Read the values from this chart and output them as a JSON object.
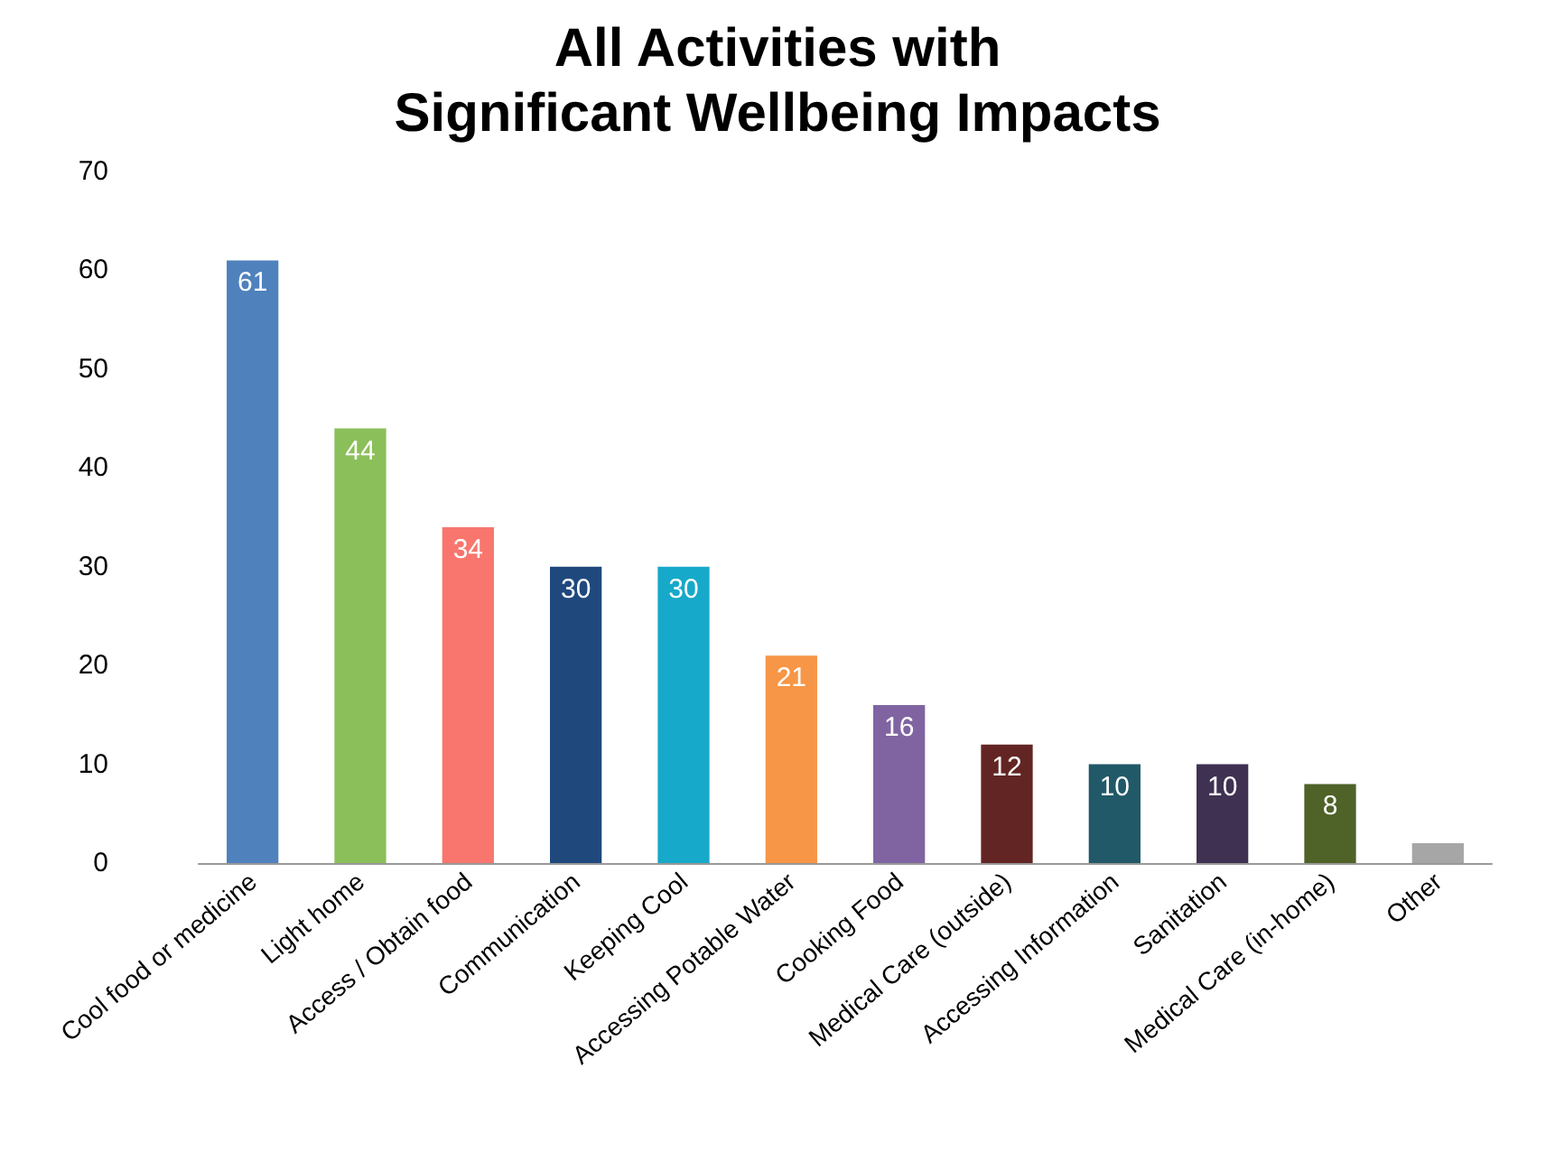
{
  "chart_data": {
    "type": "bar",
    "title": "All Activities with\nSignificant Wellbeing Impacts",
    "categories": [
      "Cool food or medicine",
      "Light home",
      "Access / Obtain food",
      "Communication",
      "Keeping Cool",
      "Accessing Potable Water",
      "Cooking Food",
      "Medical Care (outside)",
      "Accessing Information",
      "Sanitation",
      "Medical Care (in-home)",
      "Other"
    ],
    "values": [
      61,
      44,
      34,
      30,
      30,
      21,
      16,
      12,
      10,
      10,
      8,
      2
    ],
    "colors": [
      "#4f81bd",
      "#8bbf5a",
      "#f8766d",
      "#1f497d",
      "#17a9c9",
      "#f79646",
      "#8064a2",
      "#632523",
      "#215968",
      "#3f3151",
      "#4f6228",
      "#a6a6a6"
    ],
    "value_labels": [
      "61",
      "44",
      "34",
      "30",
      "30",
      "21",
      "16",
      "12",
      "10",
      "10",
      "8",
      null
    ],
    "ylim": [
      0,
      70
    ],
    "yticks": [
      0,
      10,
      20,
      30,
      40,
      50,
      60,
      70
    ],
    "grid": false
  }
}
